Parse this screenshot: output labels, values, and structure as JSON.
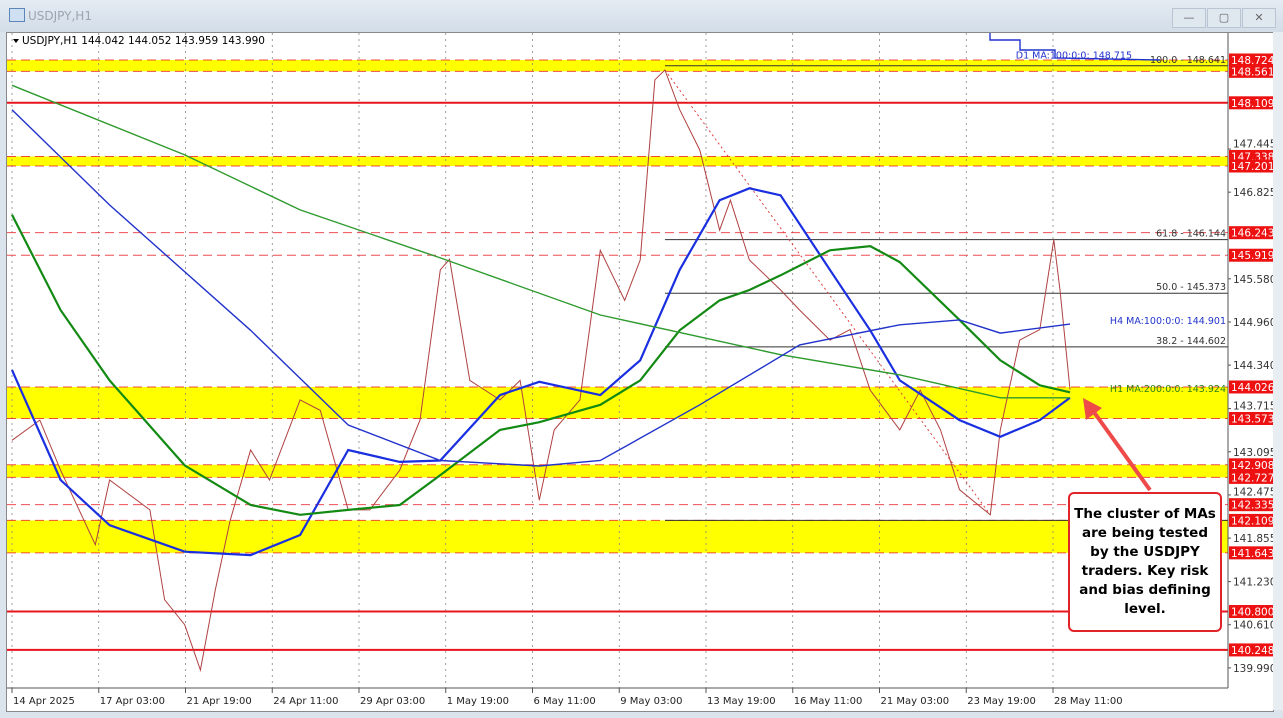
{
  "window": {
    "title": "USDJPY,H1",
    "buttons": {
      "minimize": "—",
      "maximize": "▢",
      "close": "✕"
    }
  },
  "chart_data": {
    "type": "line",
    "symbol_header": "USDJPY,H1  144.042 144.052 143.959 143.990",
    "ylim": [
      139.75,
      149.1
    ],
    "y_ticks": [
      "147.445",
      "146.825",
      "145.580",
      "144.960",
      "144.340",
      "143.715",
      "143.095",
      "142.475",
      "141.855",
      "141.230",
      "140.610",
      "139.990"
    ],
    "x_ticks": [
      "14 Apr 2025",
      "17 Apr 03:00",
      "21 Apr 19:00",
      "24 Apr 11:00",
      "29 Apr 03:00",
      "1 May 19:00",
      "6 May 11:00",
      "9 May 03:00",
      "13 May 19:00",
      "16 May 11:00",
      "21 May 03:00",
      "23 May 19:00",
      "28 May 11:00"
    ],
    "x_tick_dates": [
      "2025-04-14T00:00",
      "2025-04-17T03:00",
      "2025-04-21T19:00",
      "2025-04-24T11:00",
      "2025-04-29T03:00",
      "2025-05-01T19:00",
      "2025-05-06T11:00",
      "2025-05-09T03:00",
      "2025-05-13T19:00",
      "2025-05-16T11:00",
      "2025-05-21T03:00",
      "2025-05-23T19:00",
      "2025-05-28T11:00"
    ],
    "grid": true,
    "series": [
      {
        "key": "price",
        "color": "#2a2a2a",
        "points": [
          [
            "2025-04-14T00:00",
            143.26
          ],
          [
            "2025-04-15T00:00",
            143.55
          ],
          [
            "2025-04-15T18:00",
            142.83
          ],
          [
            "2025-04-17T00:00",
            141.76
          ],
          [
            "2025-04-17T17:00",
            142.69
          ],
          [
            "2025-04-19T21:00",
            142.26
          ],
          [
            "2025-04-20T16:00",
            140.97
          ],
          [
            "2025-04-21T18:00",
            140.61
          ],
          [
            "2025-04-22T06:00",
            139.96
          ],
          [
            "2025-04-22T17:00",
            141.11
          ],
          [
            "2025-04-23T04:00",
            142.11
          ],
          [
            "2025-04-23T19:00",
            143.12
          ],
          [
            "2025-04-24T09:00",
            142.69
          ],
          [
            "2025-04-25T23:00",
            143.84
          ],
          [
            "2025-04-27T01:00",
            143.69
          ],
          [
            "2025-04-28T13:00",
            142.26
          ],
          [
            "2025-04-29T11:00",
            142.26
          ],
          [
            "2025-04-30T09:00",
            142.83
          ],
          [
            "2025-05-01T00:00",
            143.55
          ],
          [
            "2025-05-01T15:00",
            145.71
          ],
          [
            "2025-05-02T00:00",
            145.86
          ],
          [
            "2025-05-03T02:00",
            144.12
          ],
          [
            "2025-05-04T17:00",
            143.84
          ],
          [
            "2025-05-05T19:00",
            144.12
          ],
          [
            "2025-05-06T16:00",
            142.4
          ],
          [
            "2025-05-07T03:00",
            143.41
          ],
          [
            "2025-05-07T22:00",
            143.84
          ],
          [
            "2025-05-08T13:00",
            145.99
          ],
          [
            "2025-05-09T10:00",
            145.27
          ],
          [
            "2025-05-10T06:00",
            145.85
          ],
          [
            "2025-05-11T01:00",
            148.44
          ],
          [
            "2025-05-11T14:00",
            148.58
          ],
          [
            "2025-05-12T09:00",
            148.01
          ],
          [
            "2025-05-13T11:00",
            147.43
          ],
          [
            "2025-05-14T05:00",
            146.28
          ],
          [
            "2025-05-14T13:00",
            146.71
          ],
          [
            "2025-05-15T03:00",
            145.85
          ],
          [
            "2025-05-16T02:00",
            145.42
          ],
          [
            "2025-05-16T20:00",
            145.13
          ],
          [
            "2025-05-18T11:00",
            144.7
          ],
          [
            "2025-05-19T13:00",
            144.85
          ],
          [
            "2025-05-20T15:00",
            143.98
          ],
          [
            "2025-05-21T18:00",
            143.41
          ],
          [
            "2025-05-22T09:00",
            143.98
          ],
          [
            "2025-05-23T00:00",
            143.41
          ],
          [
            "2025-05-23T14:00",
            142.55
          ],
          [
            "2025-05-25T02:00",
            142.19
          ],
          [
            "2025-05-25T15:00",
            143.41
          ],
          [
            "2025-05-26T16:00",
            144.7
          ],
          [
            "2025-05-27T18:00",
            144.85
          ],
          [
            "2025-05-28T12:00",
            146.14
          ],
          [
            "2025-05-28T20:00",
            145.42
          ],
          [
            "2025-05-29T09:00",
            143.99
          ]
        ]
      },
      {
        "key": "ma_blue_thick",
        "color": "#1a2fe0",
        "points": [
          [
            "2025-04-14T00:00",
            144.27
          ],
          [
            "2025-04-15T18:00",
            142.69
          ],
          [
            "2025-04-17T17:00",
            142.04
          ],
          [
            "2025-04-21T18:00",
            141.66
          ],
          [
            "2025-04-23T19:00",
            141.61
          ],
          [
            "2025-04-25T23:00",
            141.9
          ],
          [
            "2025-04-28T13:00",
            143.12
          ],
          [
            "2025-04-30T09:00",
            142.95
          ],
          [
            "2025-05-01T15:00",
            142.97
          ],
          [
            "2025-05-04T17:00",
            143.91
          ],
          [
            "2025-05-06T16:00",
            144.1
          ],
          [
            "2025-05-08T13:00",
            143.91
          ],
          [
            "2025-05-10T06:00",
            144.41
          ],
          [
            "2025-05-12T09:00",
            145.71
          ],
          [
            "2025-05-14T05:00",
            146.71
          ],
          [
            "2025-05-15T03:00",
            146.88
          ],
          [
            "2025-05-16T02:00",
            146.78
          ],
          [
            "2025-05-18T11:00",
            145.71
          ],
          [
            "2025-05-20T15:00",
            144.84
          ],
          [
            "2025-05-21T18:00",
            144.12
          ],
          [
            "2025-05-23T14:00",
            143.55
          ],
          [
            "2025-05-25T15:00",
            143.31
          ],
          [
            "2025-05-27T18:00",
            143.55
          ],
          [
            "2025-05-29T09:00",
            143.87
          ]
        ]
      },
      {
        "key": "ma_green_thick",
        "color": "#138a13",
        "points": [
          [
            "2025-04-14T00:00",
            146.5
          ],
          [
            "2025-04-15T18:00",
            145.13
          ],
          [
            "2025-04-17T17:00",
            144.12
          ],
          [
            "2025-04-21T18:00",
            142.9
          ],
          [
            "2025-04-23T19:00",
            142.33
          ],
          [
            "2025-04-25T23:00",
            142.19
          ],
          [
            "2025-04-28T13:00",
            142.26
          ],
          [
            "2025-04-30T09:00",
            142.33
          ],
          [
            "2025-05-01T15:00",
            142.76
          ],
          [
            "2025-05-04T17:00",
            143.41
          ],
          [
            "2025-05-06T16:00",
            143.52
          ],
          [
            "2025-05-08T13:00",
            143.77
          ],
          [
            "2025-05-10T06:00",
            144.12
          ],
          [
            "2025-05-12T09:00",
            144.84
          ],
          [
            "2025-05-14T05:00",
            145.27
          ],
          [
            "2025-05-15T03:00",
            145.42
          ],
          [
            "2025-05-16T02:00",
            145.63
          ],
          [
            "2025-05-18T11:00",
            145.99
          ],
          [
            "2025-05-20T15:00",
            146.05
          ],
          [
            "2025-05-21T18:00",
            145.82
          ],
          [
            "2025-05-23T14:00",
            144.99
          ],
          [
            "2025-05-25T15:00",
            144.41
          ],
          [
            "2025-05-27T18:00",
            144.05
          ],
          [
            "2025-05-29T09:00",
            143.95
          ]
        ]
      },
      {
        "key": "ma_green_thin",
        "color": "#2e9a2e",
        "points": [
          [
            "2025-04-14T00:00",
            148.36
          ],
          [
            "2025-04-21T18:00",
            147.36
          ],
          [
            "2025-04-25T23:00",
            146.57
          ],
          [
            "2025-05-01T15:00",
            145.88
          ],
          [
            "2025-05-08T13:00",
            145.06
          ],
          [
            "2025-05-16T02:00",
            144.49
          ],
          [
            "2025-05-21T18:00",
            144.2
          ],
          [
            "2025-05-25T15:00",
            143.87
          ],
          [
            "2025-05-29T09:00",
            143.87
          ]
        ]
      },
      {
        "key": "ma_blue_thin",
        "color": "#2233cc",
        "points": [
          [
            "2025-04-14T00:00",
            148.01
          ],
          [
            "2025-04-17T17:00",
            146.64
          ],
          [
            "2025-04-23T19:00",
            144.84
          ],
          [
            "2025-04-28T13:00",
            143.48
          ],
          [
            "2025-05-01T15:00",
            142.97
          ],
          [
            "2025-05-06T16:00",
            142.89
          ],
          [
            "2025-05-08T13:00",
            142.97
          ],
          [
            "2025-05-13T11:00",
            143.77
          ],
          [
            "2025-05-16T20:00",
            144.63
          ],
          [
            "2025-05-21T18:00",
            144.92
          ],
          [
            "2025-05-23T14:00",
            144.99
          ],
          [
            "2025-05-25T15:00",
            144.8
          ],
          [
            "2025-05-29T09:00",
            144.93
          ]
        ]
      }
    ],
    "ma_labels": [
      {
        "text": "D1 MA:100:0:0: 148.715",
        "price": 148.715,
        "color": "#2233cc"
      },
      {
        "text": "H4 MA:100:0:0: 144.901",
        "price": 144.901,
        "color": "#2233cc"
      },
      {
        "text": "H1 MA:200:0:0: 143.924",
        "price": 143.924,
        "color": "#2e7d1a"
      }
    ],
    "fib_levels": [
      {
        "text": "100.0 - 148.641",
        "price": 148.641
      },
      {
        "text": "61.8 - 146.144",
        "price": 146.144
      },
      {
        "text": "50.0 - 145.373",
        "price": 145.373
      },
      {
        "text": "38.2 - 144.602",
        "price": 144.602
      },
      {
        "text": "",
        "price": 142.109
      }
    ],
    "price_levels": [
      {
        "label": "148.724",
        "price": 148.724,
        "style": "dashed"
      },
      {
        "label": "148.561",
        "price": 148.561,
        "style": "dashed"
      },
      {
        "label": "148.109",
        "price": 148.109,
        "style": "solid"
      },
      {
        "label": "147.338",
        "price": 147.338,
        "style": "dashed"
      },
      {
        "label": "147.201",
        "price": 147.201,
        "style": "dashed"
      },
      {
        "label": "146.243",
        "price": 146.243,
        "style": "dashed"
      },
      {
        "label": "145.919",
        "price": 145.919,
        "style": "dashed"
      },
      {
        "label": "144.026",
        "price": 144.026,
        "style": "dashed"
      },
      {
        "label": "143.573",
        "price": 143.573,
        "style": "dashed"
      },
      {
        "label": "142.908",
        "price": 142.908,
        "style": "dashed"
      },
      {
        "label": "142.727",
        "price": 142.727,
        "style": "dashed"
      },
      {
        "label": "142.335",
        "price": 142.335,
        "style": "dashed"
      },
      {
        "label": "142.109",
        "price": 142.109,
        "style": "dashed"
      },
      {
        "label": "141.643",
        "price": 141.643,
        "style": "dashed"
      },
      {
        "label": "140.800",
        "price": 140.8,
        "style": "solid"
      },
      {
        "label": "140.248",
        "price": 140.248,
        "style": "solid"
      }
    ],
    "zones": [
      [
        148.724,
        148.561
      ],
      [
        147.338,
        147.201
      ],
      [
        144.026,
        143.573
      ],
      [
        142.908,
        142.727
      ],
      [
        142.109,
        141.643
      ]
    ],
    "colors": {
      "zone": "#ffff00",
      "level": "#e8141c",
      "fib": "#333333",
      "trend": "#e04040"
    }
  },
  "annotation": {
    "text": "The cluster of MAs are being tested by the USDJPY traders.   Key risk and bias defining level."
  }
}
